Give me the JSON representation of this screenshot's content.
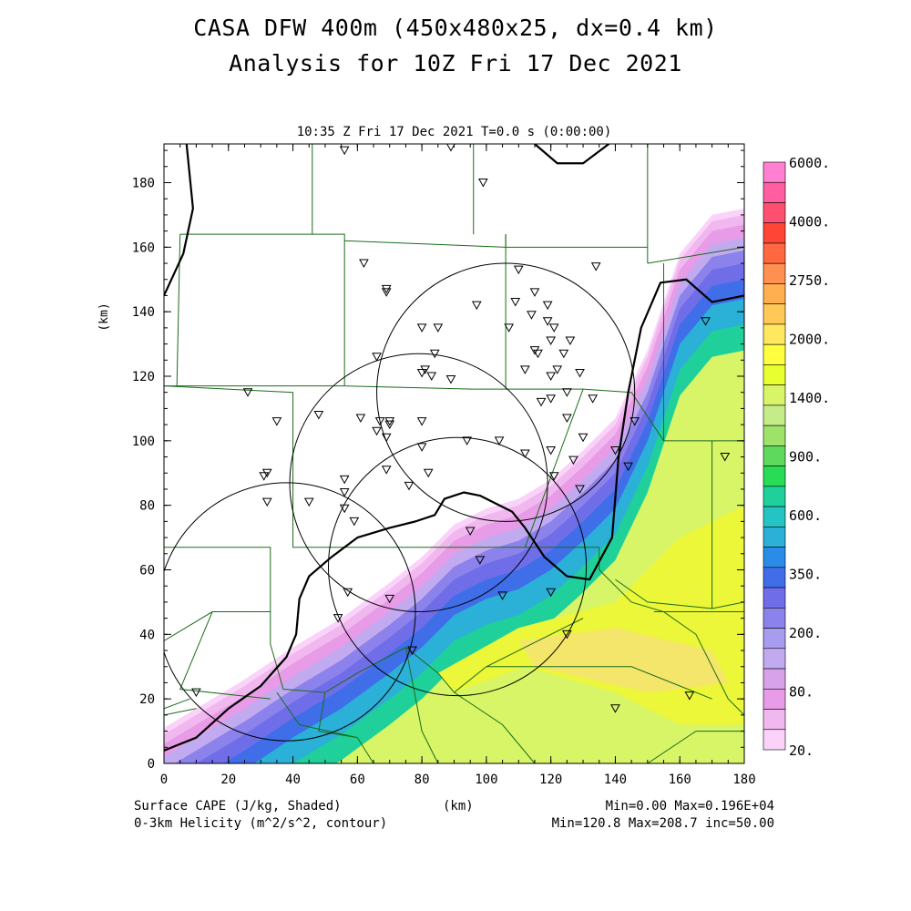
{
  "title_line1": "CASA DFW 400m (450x480x25, dx=0.4 km)",
  "title_line2": "Analysis for 10Z Fri 17 Dec 2021",
  "subtitle": "10:35 Z Fri 17 Dec 2021   T=0.0 s (0:00:00)",
  "footer": {
    "left1": "Surface CAPE (J/kg, Shaded)",
    "left2": "0-3km Helicity (m^2/s^2, contour)",
    "center": "(km)",
    "right1": "Min=0.00 Max=0.196E+04",
    "right2": "Min=120.8 Max=208.7 inc=50.00"
  },
  "chart_data": {
    "type": "heatmap",
    "xlabel": "",
    "ylabel": "(km)",
    "xlim": [
      0,
      180
    ],
    "ylim": [
      0,
      192
    ],
    "xticks": [
      "0",
      "20",
      "40",
      "60",
      "80",
      "100",
      "120",
      "140",
      "160",
      "180"
    ],
    "yticks": [
      "0",
      "20",
      "40",
      "60",
      "80",
      "100",
      "120",
      "140",
      "160",
      "180"
    ],
    "colorbar": {
      "labels": [
        "6000.",
        "4000.",
        "2750.",
        "2000.",
        "1400.",
        "900.",
        "600.",
        "350.",
        "200.",
        "80.",
        "20."
      ],
      "colors": [
        "#ff7fd0",
        "#ff5fa0",
        "#ff4f70",
        "#ff4535",
        "#ff6840",
        "#ff9050",
        "#ffae50",
        "#ffc857",
        "#ffe860",
        "#ffff40",
        "#e8ff30",
        "#d8f568",
        "#c4ec88",
        "#9ee26a",
        "#5fd85e",
        "#28dc56",
        "#1fd09a",
        "#25c4c4",
        "#2bb0d8",
        "#2b8ce8",
        "#3f6ee8",
        "#6f6ee8",
        "#8c82ec",
        "#a79cee",
        "#c2aaf0",
        "#d8a2ea",
        "#e89be6",
        "#f0b8ee",
        "#fad2fa"
      ]
    },
    "cape_band": {
      "edge_points": [
        [
          0,
          11
        ],
        [
          10,
          17
        ],
        [
          25,
          26
        ],
        [
          40,
          36
        ],
        [
          55,
          45
        ],
        [
          70,
          56
        ],
        [
          80,
          64
        ],
        [
          90,
          74
        ],
        [
          100,
          79
        ],
        [
          110,
          82
        ],
        [
          120,
          88
        ],
        [
          130,
          97
        ],
        [
          140,
          107
        ],
        [
          150,
          128
        ],
        [
          160,
          158
        ],
        [
          170,
          170
        ],
        [
          180,
          172
        ]
      ],
      "band_offsets_km": [
        0,
        2,
        5,
        9,
        13,
        17,
        22,
        28,
        36
      ],
      "inner_fill": "#d8f568",
      "yellow_regions": [
        [
          [
            85,
            28
          ],
          [
            110,
            42
          ],
          [
            140,
            50
          ],
          [
            160,
            70
          ],
          [
            180,
            80
          ],
          [
            180,
            12
          ],
          [
            160,
            12
          ],
          [
            140,
            22
          ],
          [
            112,
            30
          ],
          [
            90,
            22
          ]
        ],
        [
          [
            110,
            38
          ],
          [
            140,
            42
          ],
          [
            170,
            35
          ],
          [
            175,
            25
          ],
          [
            150,
            22
          ],
          [
            115,
            30
          ]
        ]
      ]
    },
    "helicity_contour": [
      [
        0,
        4
      ],
      [
        10,
        8
      ],
      [
        20,
        17
      ],
      [
        30,
        24
      ],
      [
        38,
        33
      ],
      [
        41,
        40
      ],
      [
        42,
        51
      ],
      [
        45,
        58
      ],
      [
        52,
        64
      ],
      [
        60,
        70
      ],
      [
        70,
        73
      ],
      [
        78,
        75
      ],
      [
        84,
        77
      ],
      [
        87,
        82
      ],
      [
        93,
        84
      ],
      [
        98,
        83
      ],
      [
        104,
        80
      ],
      [
        108,
        78
      ],
      [
        112,
        73
      ],
      [
        118,
        64
      ],
      [
        125,
        58
      ],
      [
        132,
        57
      ],
      [
        139,
        70
      ],
      [
        141,
        95
      ],
      [
        144,
        115
      ],
      [
        148,
        135
      ],
      [
        154,
        149
      ],
      [
        162,
        150
      ],
      [
        170,
        143
      ],
      [
        180,
        145
      ]
    ],
    "helicity_contour_upper": [
      [
        7,
        192
      ],
      [
        9,
        172
      ],
      [
        6,
        158
      ],
      [
        0,
        145
      ]
    ],
    "helicity_contour_top": [
      [
        115,
        192
      ],
      [
        122,
        186
      ],
      [
        130,
        186
      ],
      [
        138,
        192
      ]
    ],
    "radar_circles": [
      {
        "cx": 38,
        "cy": 47,
        "r": 40
      },
      {
        "cx": 79,
        "cy": 87,
        "r": 40
      },
      {
        "cx": 106,
        "cy": 115,
        "r": 40
      },
      {
        "cx": 91,
        "cy": 61,
        "r": 40
      }
    ],
    "county_lines": [
      [
        [
          46,
          192
        ],
        [
          46,
          164
        ]
      ],
      [
        [
          96,
          192
        ],
        [
          96,
          164
        ]
      ],
      [
        [
          150,
          192
        ],
        [
          150,
          155
        ]
      ],
      [
        [
          5,
          164
        ],
        [
          56,
          164
        ],
        [
          56,
          162
        ],
        [
          106,
          160
        ],
        [
          106,
          164
        ]
      ],
      [
        [
          106,
          160
        ],
        [
          150,
          160
        ]
      ],
      [
        [
          150,
          155
        ],
        [
          180,
          160
        ]
      ],
      [
        [
          56,
          162
        ],
        [
          56,
          117
        ],
        [
          96,
          116
        ]
      ],
      [
        [
          106,
          164
        ],
        [
          106,
          116
        ]
      ],
      [
        [
          5,
          164
        ],
        [
          4,
          117
        ],
        [
          56,
          117
        ]
      ],
      [
        [
          0,
          117
        ],
        [
          4,
          117
        ]
      ],
      [
        [
          96,
          116
        ],
        [
          130,
          116
        ],
        [
          145,
          115
        ]
      ],
      [
        [
          155,
          155
        ],
        [
          155,
          100
        ]
      ],
      [
        [
          145,
          115
        ],
        [
          155,
          100
        ]
      ],
      [
        [
          0,
          117
        ],
        [
          40,
          115
        ],
        [
          40,
          67
        ],
        [
          96,
          67
        ],
        [
          112,
          67
        ]
      ],
      [
        [
          130,
          116
        ],
        [
          112,
          67
        ],
        [
          135,
          67
        ]
      ],
      [
        [
          135,
          67
        ],
        [
          135,
          60
        ]
      ],
      [
        [
          155,
          100
        ],
        [
          170,
          100
        ],
        [
          180,
          100
        ]
      ],
      [
        [
          0,
          67
        ],
        [
          33,
          67
        ],
        [
          33,
          37
        ]
      ],
      [
        [
          33,
          47
        ],
        [
          15,
          47
        ],
        [
          0,
          38
        ]
      ],
      [
        [
          15,
          47
        ],
        [
          5,
          23
        ],
        [
          33,
          20
        ]
      ],
      [
        [
          33,
          37
        ],
        [
          37,
          23
        ],
        [
          50,
          22
        ],
        [
          60,
          28
        ],
        [
          75,
          36
        ],
        [
          85,
          28
        ],
        [
          90,
          22
        ]
      ],
      [
        [
          35,
          22
        ],
        [
          42,
          12
        ],
        [
          60,
          8
        ],
        [
          65,
          0
        ]
      ],
      [
        [
          50,
          22
        ],
        [
          48,
          10
        ],
        [
          60,
          8
        ]
      ],
      [
        [
          75,
          36
        ],
        [
          80,
          10
        ],
        [
          85,
          0
        ]
      ],
      [
        [
          90,
          22
        ],
        [
          105,
          12
        ],
        [
          115,
          0
        ]
      ],
      [
        [
          135,
          60
        ],
        [
          145,
          50
        ],
        [
          155,
          47
        ],
        [
          165,
          40
        ],
        [
          175,
          20
        ],
        [
          180,
          15
        ]
      ],
      [
        [
          140,
          57
        ],
        [
          150,
          50
        ],
        [
          170,
          48
        ],
        [
          180,
          50
        ]
      ],
      [
        [
          152,
          47
        ],
        [
          180,
          47
        ]
      ],
      [
        [
          170,
          100
        ],
        [
          170,
          48
        ]
      ],
      [
        [
          130,
          45
        ],
        [
          100,
          30
        ],
        [
          90,
          22
        ]
      ],
      [
        [
          100,
          30
        ],
        [
          145,
          30
        ],
        [
          170,
          20
        ]
      ],
      [
        [
          0,
          17
        ],
        [
          8,
          20
        ]
      ],
      [
        [
          150,
          0
        ],
        [
          165,
          10
        ],
        [
          180,
          10
        ]
      ],
      [
        [
          0,
          15
        ],
        [
          10,
          17
        ]
      ]
    ],
    "stations": [
      [
        56,
        190
      ],
      [
        89,
        191
      ],
      [
        99,
        180
      ],
      [
        62,
        155
      ],
      [
        69,
        147
      ],
      [
        69,
        146
      ],
      [
        134,
        154
      ],
      [
        110,
        153
      ],
      [
        115,
        146
      ],
      [
        109,
        143
      ],
      [
        97,
        142
      ],
      [
        119,
        142
      ],
      [
        114,
        139
      ],
      [
        107,
        135
      ],
      [
        119,
        137
      ],
      [
        121,
        135
      ],
      [
        85,
        135
      ],
      [
        80,
        135
      ],
      [
        120,
        131
      ],
      [
        126,
        131
      ],
      [
        84,
        127
      ],
      [
        115,
        128
      ],
      [
        116,
        127
      ],
      [
        124,
        127
      ],
      [
        66,
        126
      ],
      [
        122,
        122
      ],
      [
        112,
        122
      ],
      [
        129,
        121
      ],
      [
        81,
        122
      ],
      [
        80,
        121
      ],
      [
        83,
        120
      ],
      [
        89,
        119
      ],
      [
        120,
        120
      ],
      [
        125,
        115
      ],
      [
        117,
        112
      ],
      [
        120,
        113
      ],
      [
        133,
        113
      ],
      [
        26,
        115
      ],
      [
        48,
        108
      ],
      [
        61,
        107
      ],
      [
        67,
        106
      ],
      [
        70,
        105
      ],
      [
        70,
        106
      ],
      [
        80,
        106
      ],
      [
        125,
        107
      ],
      [
        146,
        106
      ],
      [
        35,
        106
      ],
      [
        66,
        103
      ],
      [
        69,
        101
      ],
      [
        104,
        100
      ],
      [
        112,
        96
      ],
      [
        80,
        98
      ],
      [
        94,
        100
      ],
      [
        120,
        97
      ],
      [
        127,
        94
      ],
      [
        130,
        101
      ],
      [
        140,
        97
      ],
      [
        144,
        92
      ],
      [
        174,
        95
      ],
      [
        69,
        91
      ],
      [
        82,
        90
      ],
      [
        121,
        89
      ],
      [
        32,
        90
      ],
      [
        31,
        89
      ],
      [
        76,
        86
      ],
      [
        129,
        85
      ],
      [
        56,
        88
      ],
      [
        56,
        84
      ],
      [
        45,
        81
      ],
      [
        56,
        79
      ],
      [
        32,
        81
      ],
      [
        59,
        75
      ],
      [
        95,
        72
      ],
      [
        98,
        63
      ],
      [
        57,
        53
      ],
      [
        70,
        51
      ],
      [
        105,
        52
      ],
      [
        120,
        53
      ],
      [
        54,
        45
      ],
      [
        77,
        35
      ],
      [
        125,
        40
      ],
      [
        168,
        137
      ],
      [
        10,
        22
      ],
      [
        140,
        17
      ],
      [
        163,
        21
      ]
    ]
  }
}
